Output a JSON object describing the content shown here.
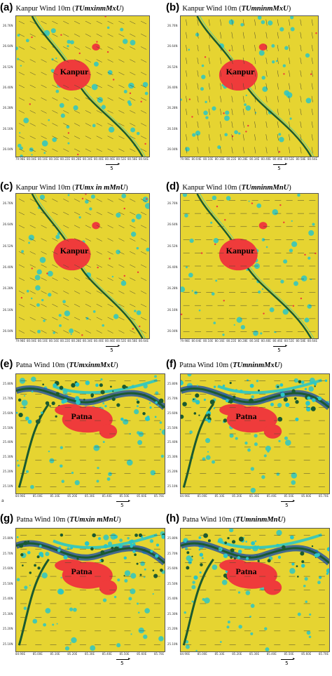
{
  "panels": [
    {
      "letter": "(a)",
      "city": "Kanpur",
      "title_pre": "Kanpur Wind 10m (",
      "model": "TUmxinmMxU",
      "title_post": ")",
      "yticks": [
        "26.76N",
        "26.64N",
        "26.52N",
        "26.40N",
        "26.28N",
        "26.16N",
        "26.04N"
      ],
      "xticks": [
        "79.98E",
        "80.04E",
        "80.10E",
        "80.16E",
        "80.22E",
        "80.28E",
        "80.34E",
        "80.40E",
        "80.46E",
        "80.52E",
        "80.58E",
        "80.64E"
      ],
      "scale": "5"
    },
    {
      "letter": "(b)",
      "city": "Kanpur",
      "title_pre": "Kanpur Wind 10m (",
      "model": "TUmninmMxU",
      "title_post": ")",
      "yticks": [
        "26.76N",
        "26.64N",
        "26.52N",
        "26.40N",
        "26.28N",
        "26.16N",
        "26.04N"
      ],
      "xticks": [
        "79.98E",
        "80.04E",
        "80.10E",
        "80.16E",
        "80.22E",
        "80.28E",
        "80.34E",
        "80.40E",
        "80.46E",
        "80.52E",
        "80.58E",
        "80.64E"
      ],
      "scale": "5"
    },
    {
      "letter": "(c)",
      "city": "Kanpur",
      "title_pre": "Kanpur Wind 10m (",
      "model": "TUmx in mMnU",
      "title_post": ")",
      "yticks": [
        "26.76N",
        "26.64N",
        "26.52N",
        "26.40N",
        "26.28N",
        "26.16N",
        "26.04N"
      ],
      "xticks": [
        "79.98E",
        "80.04E",
        "80.10E",
        "80.16E",
        "80.22E",
        "80.28E",
        "80.34E",
        "80.40E",
        "80.46E",
        "80.52E",
        "80.58E",
        "80.64E"
      ],
      "scale": "5"
    },
    {
      "letter": "(d)",
      "city": "Kanpur",
      "title_pre": "Kanpur Wind 10m (",
      "model": "TUmninmMnU",
      "title_post": ")",
      "yticks": [
        "26.76N",
        "26.64N",
        "26.52N",
        "26.40N",
        "26.28N",
        "26.16N",
        "26.04N"
      ],
      "xticks": [
        "79.98E",
        "80.04E",
        "80.10E",
        "80.16E",
        "80.22E",
        "80.28E",
        "80.34E",
        "80.40E",
        "80.46E",
        "80.52E",
        "80.58E",
        "80.64E"
      ],
      "scale": "5"
    },
    {
      "letter": "(e)",
      "city": "Patna",
      "title_pre": "Patna Wind 10m (",
      "model": "TUmxinmMxU",
      "title_post": ")",
      "yticks": [
        "25.80N",
        "25.70N",
        "25.60N",
        "25.50N",
        "25.40N",
        "25.30N",
        "25.20N",
        "25.10N"
      ],
      "xticks": [
        "84.90E",
        "85.00E",
        "85.10E",
        "85.20E",
        "85.30E",
        "85.40E",
        "85.50E",
        "85.60E",
        "85.70E"
      ],
      "scale": "5"
    },
    {
      "letter": "(f)",
      "city": "Patna",
      "title_pre": "Patna Wind 10m (",
      "model": "TUmninmMxU",
      "title_post": ")",
      "yticks": [
        "25.80N",
        "25.70N",
        "25.60N",
        "25.50N",
        "25.40N",
        "25.30N",
        "25.20N",
        "25.10N"
      ],
      "xticks": [
        "84.90E",
        "85.00E",
        "85.10E",
        "85.20E",
        "85.30E",
        "85.40E",
        "85.50E",
        "85.60E",
        "85.70E"
      ],
      "scale": "5"
    },
    {
      "letter": "(g)",
      "city": "Patna",
      "title_pre": "Patna Wind 10m (",
      "model": "TUmxin mMnU",
      "title_post": ")",
      "yticks": [
        "25.80N",
        "25.70N",
        "25.60N",
        "25.50N",
        "25.40N",
        "25.30N",
        "25.20N",
        "25.10N"
      ],
      "xticks": [
        "84.90E",
        "85.00E",
        "85.10E",
        "85.20E",
        "85.30E",
        "85.40E",
        "85.50E",
        "85.60E",
        "85.70E"
      ],
      "scale": "5"
    },
    {
      "letter": "(h)",
      "city": "Patna",
      "title_pre": "Patna Wind 10m (",
      "model": "TUmninmMnU",
      "title_post": ")",
      "yticks": [
        "25.80N",
        "25.70N",
        "25.60N",
        "25.50N",
        "25.40N",
        "25.30N",
        "25.20N",
        "25.10N"
      ],
      "xticks": [
        "84.90E",
        "85.00E",
        "85.10E",
        "85.20E",
        "85.30E",
        "85.40E",
        "85.50E",
        "85.60E",
        "85.70E"
      ],
      "scale": "5"
    }
  ],
  "colors": {
    "land": "#e6d431",
    "urban": "#ef3b3b",
    "river": "#1a5a30",
    "water": "#2ac6c6",
    "wetland": "#1d4fa6",
    "arrow": "#4a4a30"
  },
  "footnote": "a"
}
